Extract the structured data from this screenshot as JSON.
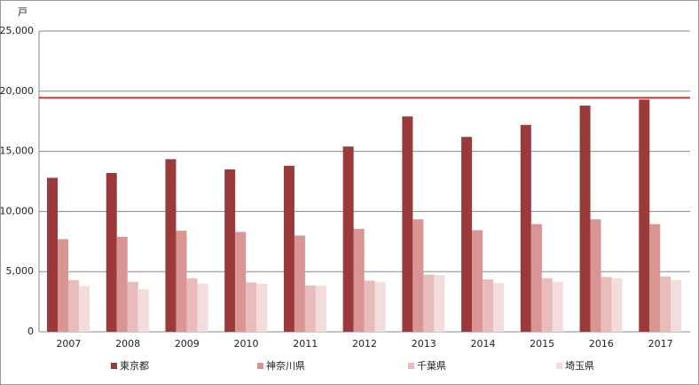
{
  "chart_data": {
    "type": "bar",
    "y_unit": "戸",
    "categories": [
      "2007",
      "2008",
      "2009",
      "2010",
      "2011",
      "2012",
      "2013",
      "2014",
      "2015",
      "2016",
      "2017"
    ],
    "series": [
      {
        "name": "東京都",
        "color": "#9b3a3a",
        "values": [
          12800,
          13200,
          14350,
          13500,
          13800,
          15400,
          17900,
          16200,
          17200,
          18800,
          19300
        ]
      },
      {
        "name": "神奈川県",
        "color": "#d99594",
        "values": [
          7700,
          7900,
          8400,
          8300,
          8000,
          8550,
          9350,
          8450,
          8950,
          9350,
          8950
        ]
      },
      {
        "name": "千葉県",
        "color": "#e9bcbc",
        "values": [
          4300,
          4150,
          4450,
          4100,
          3850,
          4250,
          4750,
          4350,
          4450,
          4550,
          4600
        ]
      },
      {
        "name": "埼玉県",
        "color": "#f3dcdc",
        "values": [
          3800,
          3550,
          4000,
          4000,
          3850,
          4150,
          4700,
          4050,
          4150,
          4450,
          4300
        ]
      }
    ],
    "reference_line": {
      "value": 19450,
      "color": "#e03030"
    },
    "ylim": [
      0,
      25000
    ],
    "yticks": [
      0,
      {
        "value": 5000,
        "label": "5,000"
      },
      {
        "value": 10000,
        "label": "10,000"
      },
      {
        "value": 15000,
        "label": "15,000"
      },
      {
        "value": 20000,
        "label": "20,000"
      },
      {
        "value": 25000,
        "label": "25,000"
      }
    ],
    "grid": true
  }
}
